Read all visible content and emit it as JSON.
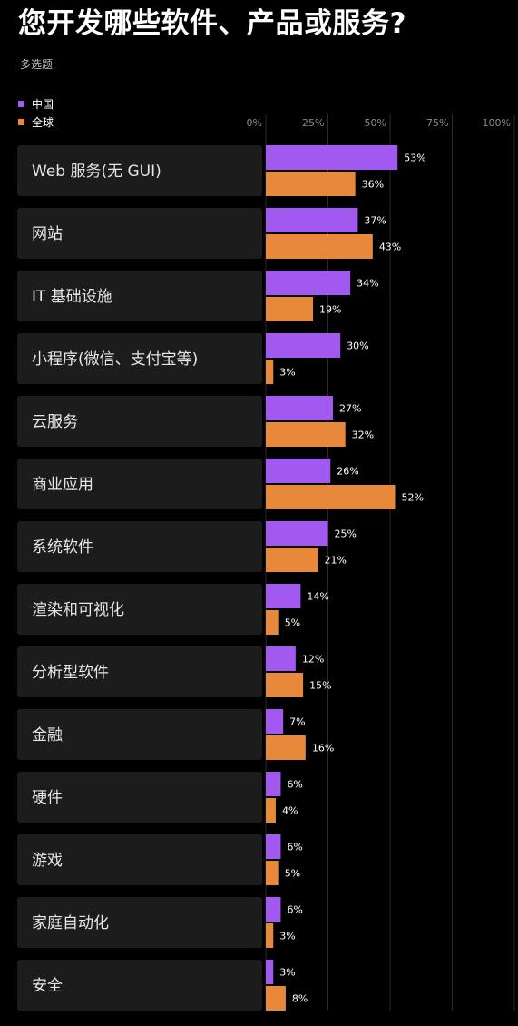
{
  "header": {
    "title": "您开发哪些软件、产品或服务?",
    "subtitle": "多选题"
  },
  "colors": {
    "china": "#a259f0",
    "global": "#e8883a",
    "label_bg": "#1c1c1c",
    "grid": "#2a2a2a"
  },
  "chart_data": {
    "type": "bar",
    "orientation": "horizontal",
    "title": "您开发哪些软件、产品或服务?",
    "subtitle": "多选题",
    "legend_position": "top-left",
    "x_ticks": [
      "0%",
      "25%",
      "50%",
      "75%",
      "100%"
    ],
    "xlim": [
      0,
      100
    ],
    "grid": true,
    "categories": [
      "Web 服务(无 GUI)",
      "网站",
      "IT 基础设施",
      "小程序(微信、支付宝等)",
      "云服务",
      "商业应用",
      "系统软件",
      "渲染和可视化",
      "分析型软件",
      "金融",
      "硬件",
      "游戏",
      "家庭自动化",
      "安全"
    ],
    "series": [
      {
        "name": "中国",
        "color": "#a259f0",
        "values": [
          53,
          37,
          34,
          30,
          27,
          26,
          25,
          14,
          12,
          7,
          6,
          6,
          6,
          3
        ],
        "labels": [
          "53%",
          "37%",
          "34%",
          "30%",
          "27%",
          "26%",
          "25%",
          "14%",
          "12%",
          "7%",
          "6%",
          "6%",
          "6%",
          "3%"
        ]
      },
      {
        "name": "全球",
        "color": "#e8883a",
        "values": [
          36,
          43,
          19,
          3,
          32,
          52,
          21,
          5,
          15,
          16,
          4,
          5,
          3,
          8
        ],
        "labels": [
          "36%",
          "43%",
          "19%",
          "3%",
          "32%",
          "52%",
          "21%",
          "5%",
          "15%",
          "16%",
          "4%",
          "5%",
          "3%",
          "8%"
        ]
      }
    ]
  }
}
